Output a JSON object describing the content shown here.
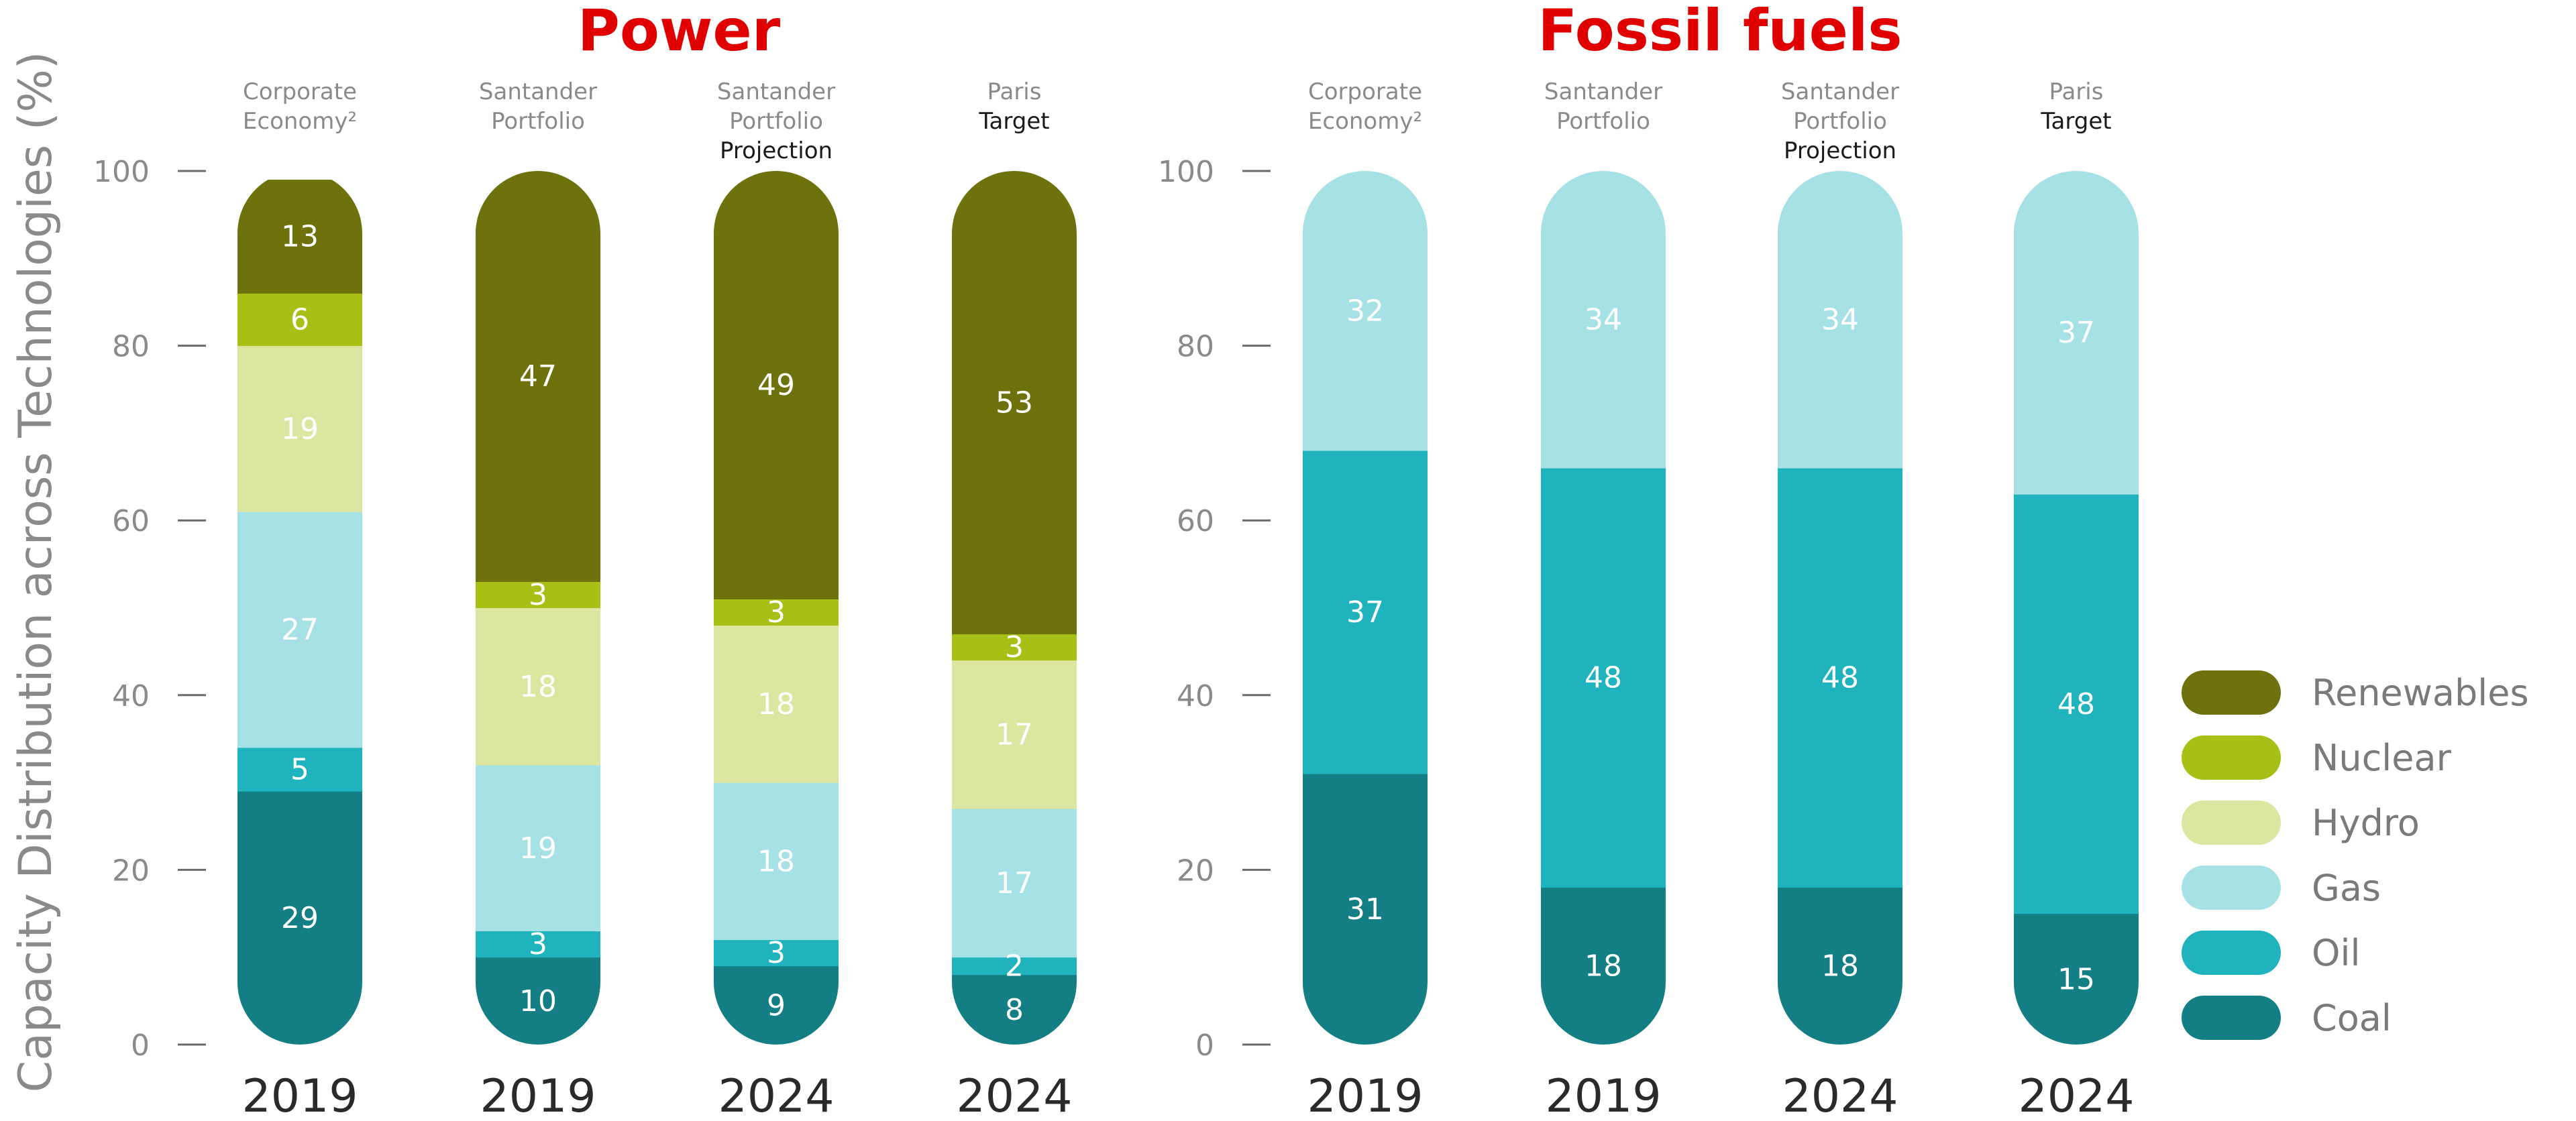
{
  "chart_data": [
    {
      "type": "bar",
      "stacked": true,
      "title": "Power",
      "ylabel": "Capacity Distribution across Technologies (%)",
      "ylim": [
        0,
        100
      ],
      "yticks": [
        "0",
        "20",
        "40",
        "60",
        "80",
        "100"
      ],
      "categories": [
        {
          "header": [
            "Corporate",
            "Economy²"
          ],
          "emphasis": "",
          "year": "2019"
        },
        {
          "header": [
            "Santander",
            "Portfolio"
          ],
          "emphasis": "",
          "year": "2019"
        },
        {
          "header": [
            "Santander",
            "Portfolio"
          ],
          "emphasis": "Projection",
          "year": "2024"
        },
        {
          "header": [
            "Paris"
          ],
          "emphasis": "Target",
          "year": "2024"
        }
      ],
      "series": [
        {
          "name": "Coal",
          "values": [
            29,
            10,
            9,
            8
          ]
        },
        {
          "name": "Oil",
          "values": [
            5,
            3,
            3,
            2
          ]
        },
        {
          "name": "Gas",
          "values": [
            27,
            19,
            18,
            17
          ]
        },
        {
          "name": "Hydro",
          "values": [
            19,
            18,
            18,
            17
          ]
        },
        {
          "name": "Nuclear",
          "values": [
            6,
            3,
            3,
            3
          ]
        },
        {
          "name": "Renewables",
          "values": [
            13,
            47,
            49,
            53
          ]
        }
      ]
    },
    {
      "type": "bar",
      "stacked": true,
      "title": "Fossil fuels",
      "ylim": [
        0,
        100
      ],
      "yticks": [
        "0",
        "20",
        "40",
        "60",
        "80",
        "100"
      ],
      "categories": [
        {
          "header": [
            "Corporate",
            "Economy²"
          ],
          "emphasis": "",
          "year": "2019"
        },
        {
          "header": [
            "Santander",
            "Portfolio"
          ],
          "emphasis": "",
          "year": "2019"
        },
        {
          "header": [
            "Santander",
            "Portfolio"
          ],
          "emphasis": "Projection",
          "year": "2024"
        },
        {
          "header": [
            "Paris"
          ],
          "emphasis": "Target",
          "year": "2024"
        }
      ],
      "series": [
        {
          "name": "Coal",
          "values": [
            31,
            18,
            18,
            15
          ]
        },
        {
          "name": "Oil",
          "values": [
            37,
            48,
            48,
            48
          ]
        },
        {
          "name": "Gas",
          "values": [
            32,
            34,
            34,
            37
          ]
        }
      ]
    }
  ],
  "legend": [
    {
      "name": "Renewables",
      "color": "#6e720c"
    },
    {
      "name": "Nuclear",
      "color": "#a8c015"
    },
    {
      "name": "Hydro",
      "color": "#dce6a1"
    },
    {
      "name": "Gas",
      "color": "#a6e1e5"
    },
    {
      "name": "Oil",
      "color": "#1eb3bd"
    },
    {
      "name": "Coal",
      "color": "#137f84"
    }
  ],
  "legend_position": "right"
}
